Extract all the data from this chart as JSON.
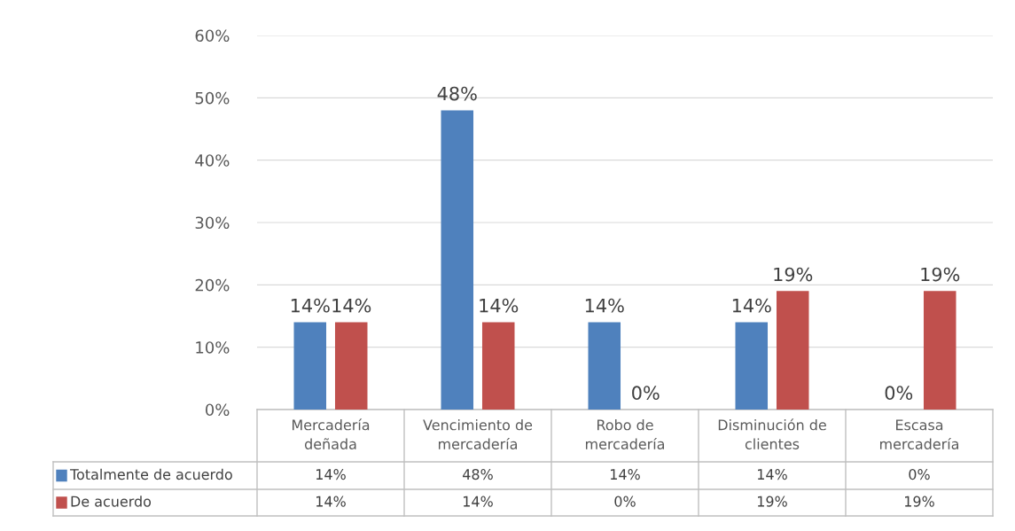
{
  "chart_data": {
    "type": "bar",
    "categories": [
      "Mercadería\ndeñada",
      "Vencimiento de\nmercadería",
      "Robo de\nmercadería",
      "Disminución de\nclientes",
      "Escasa\nmercadería"
    ],
    "series": [
      {
        "name": "Totalmente de acuerdo",
        "color": "#4f81bd",
        "values": [
          14,
          48,
          14,
          14,
          0
        ],
        "value_labels": [
          "14%",
          "48%",
          "14%",
          "14%",
          "0%"
        ]
      },
      {
        "name": "De acuerdo",
        "color": "#c0504d",
        "values": [
          14,
          14,
          0,
          19,
          19
        ],
        "value_labels": [
          "14%",
          "14%",
          "0%",
          "19%",
          "19%"
        ]
      }
    ],
    "ylim": [
      0,
      60
    ],
    "yticks": [
      {
        "value": 0,
        "label": "0%"
      },
      {
        "value": 10,
        "label": "10%"
      },
      {
        "value": 20,
        "label": "20%"
      },
      {
        "value": 30,
        "label": "30%"
      },
      {
        "value": 40,
        "label": "40%"
      },
      {
        "value": 50,
        "label": "50%"
      },
      {
        "value": 60,
        "label": "60%"
      }
    ],
    "grid": "y",
    "legend": "bottom"
  }
}
